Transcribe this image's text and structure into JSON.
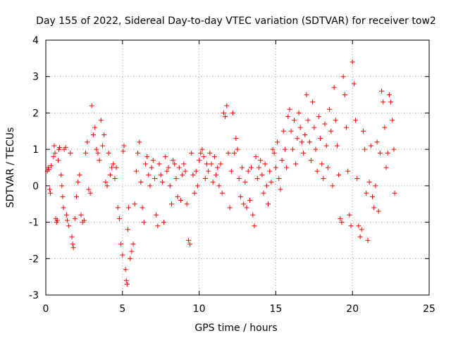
{
  "chart_data": {
    "type": "scatter",
    "title": "Day 155 of 2022, Sidereal Day-to-day VTEC variation (SDTVAR) for receiver tow2",
    "xlabel": "GPS time / hours",
    "ylabel": "SDTVAR / TECUs",
    "xlim": [
      0,
      25
    ],
    "ylim": [
      -3,
      4
    ],
    "xticks": [
      0,
      5,
      10,
      15,
      20,
      25
    ],
    "xtick_labels": [
      "0",
      "5",
      "10",
      "15",
      "20",
      "25"
    ],
    "yticks": [
      -3,
      -2,
      -1,
      0,
      1,
      2,
      3,
      4
    ],
    "ytick_labels": [
      "-3",
      "-2",
      "-1",
      "0",
      "1",
      "2",
      "3",
      "4"
    ],
    "grid": true,
    "marker": "plus",
    "color": "#ff0000",
    "series": [
      {
        "name": "SDTVAR",
        "points": [
          [
            0.1,
            0.4
          ],
          [
            0.15,
            0.5
          ],
          [
            0.2,
            0.45
          ],
          [
            0.25,
            -0.1
          ],
          [
            0.3,
            -0.2
          ],
          [
            0.35,
            0.55
          ],
          [
            0.5,
            0.8
          ],
          [
            0.55,
            1.1
          ],
          [
            0.6,
            0.9
          ],
          [
            0.65,
            -0.9
          ],
          [
            0.7,
            -1.0
          ],
          [
            0.75,
            -0.95
          ],
          [
            0.8,
            0.7
          ],
          [
            0.85,
            1.0
          ],
          [
            0.9,
            1.05
          ],
          [
            1.0,
            0.3
          ],
          [
            1.05,
            0.0
          ],
          [
            1.1,
            -0.3
          ],
          [
            1.15,
            -0.6
          ],
          [
            1.2,
            1.0
          ],
          [
            1.3,
            1.05
          ],
          [
            1.35,
            -0.8
          ],
          [
            1.4,
            -0.95
          ],
          [
            1.5,
            -1.1
          ],
          [
            1.6,
            0.9
          ],
          [
            1.7,
            -1.4
          ],
          [
            1.75,
            -1.6
          ],
          [
            1.8,
            -1.7
          ],
          [
            1.9,
            -0.9
          ],
          [
            2.0,
            -0.3
          ],
          [
            2.1,
            0.1
          ],
          [
            2.2,
            0.3
          ],
          [
            2.3,
            -0.8
          ],
          [
            2.4,
            -1.0
          ],
          [
            2.5,
            -0.95
          ],
          [
            2.6,
            0.9
          ],
          [
            2.7,
            1.2
          ],
          [
            2.8,
            -0.1
          ],
          [
            2.9,
            -0.2
          ],
          [
            3.0,
            2.2
          ],
          [
            3.1,
            1.4
          ],
          [
            3.2,
            1.6
          ],
          [
            3.3,
            1.0
          ],
          [
            3.4,
            0.9
          ],
          [
            3.5,
            0.7
          ],
          [
            3.6,
            1.8
          ],
          [
            3.7,
            1.1
          ],
          [
            3.8,
            1.4
          ],
          [
            3.9,
            0.1
          ],
          [
            4.0,
            0.0
          ],
          [
            4.1,
            0.9
          ],
          [
            4.2,
            0.3
          ],
          [
            4.3,
            0.5
          ],
          [
            4.4,
            0.6
          ],
          [
            4.5,
            0.2
          ],
          [
            4.6,
            0.5
          ],
          [
            4.7,
            -0.6
          ],
          [
            4.8,
            -0.9
          ],
          [
            4.9,
            -1.6
          ],
          [
            5.0,
            -1.9
          ],
          [
            5.05,
            0.95
          ],
          [
            5.1,
            1.1
          ],
          [
            5.2,
            -2.3
          ],
          [
            5.25,
            -2.6
          ],
          [
            5.3,
            -2.7
          ],
          [
            5.35,
            -1.2
          ],
          [
            5.4,
            -0.6
          ],
          [
            5.5,
            -2.0
          ],
          [
            5.6,
            -1.8
          ],
          [
            5.7,
            -1.6
          ],
          [
            5.8,
            -0.5
          ],
          [
            5.9,
            0.4
          ],
          [
            6.0,
            0.9
          ],
          [
            6.1,
            1.2
          ],
          [
            6.2,
            0.1
          ],
          [
            6.3,
            -0.6
          ],
          [
            6.4,
            -1.0
          ],
          [
            6.5,
            0.6
          ],
          [
            6.6,
            0.8
          ],
          [
            6.7,
            0.3
          ],
          [
            6.8,
            0.0
          ],
          [
            6.9,
            0.5
          ],
          [
            7.0,
            0.7
          ],
          [
            7.1,
            0.2
          ],
          [
            7.2,
            -0.8
          ],
          [
            7.3,
            -1.1
          ],
          [
            7.4,
            0.6
          ],
          [
            7.5,
            0.3
          ],
          [
            7.6,
            0.1
          ],
          [
            7.7,
            -1.0
          ],
          [
            7.8,
            0.8
          ],
          [
            7.9,
            0.4
          ],
          [
            8.0,
            0.5
          ],
          [
            8.1,
            0.0
          ],
          [
            8.2,
            -0.5
          ],
          [
            8.3,
            0.7
          ],
          [
            8.4,
            0.6
          ],
          [
            8.5,
            0.2
          ],
          [
            8.6,
            -0.3
          ],
          [
            8.7,
            0.5
          ],
          [
            8.8,
            -0.4
          ],
          [
            8.9,
            0.3
          ],
          [
            9.0,
            0.6
          ],
          [
            9.1,
            0.4
          ],
          [
            9.2,
            -0.5
          ],
          [
            9.3,
            -1.5
          ],
          [
            9.4,
            -1.6
          ],
          [
            9.5,
            0.9
          ],
          [
            9.6,
            0.3
          ],
          [
            9.7,
            -0.2
          ],
          [
            9.8,
            0.4
          ],
          [
            9.9,
            0.0
          ],
          [
            10.0,
            0.7
          ],
          [
            10.1,
            0.9
          ],
          [
            10.2,
            1.0
          ],
          [
            10.3,
            0.8
          ],
          [
            10.4,
            0.2
          ],
          [
            10.5,
            0.6
          ],
          [
            10.6,
            0.4
          ],
          [
            10.7,
            0.9
          ],
          [
            10.8,
            0.6
          ],
          [
            10.9,
            0.1
          ],
          [
            11.0,
            0.8
          ],
          [
            11.1,
            0.3
          ],
          [
            11.2,
            0.5
          ],
          [
            11.3,
            0.0
          ],
          [
            11.4,
            0.6
          ],
          [
            11.5,
            -0.2
          ],
          [
            11.6,
            2.0
          ],
          [
            11.7,
            1.9
          ],
          [
            11.8,
            2.2
          ],
          [
            11.9,
            0.9
          ],
          [
            12.0,
            -0.6
          ],
          [
            12.1,
            0.4
          ],
          [
            12.2,
            2.0
          ],
          [
            12.3,
            0.9
          ],
          [
            12.4,
            1.3
          ],
          [
            12.5,
            1.0
          ],
          [
            12.6,
            0.2
          ],
          [
            12.7,
            -0.3
          ],
          [
            12.8,
            0.5
          ],
          [
            12.9,
            -0.5
          ],
          [
            13.0,
            0.1
          ],
          [
            13.1,
            -0.6
          ],
          [
            13.2,
            0.4
          ],
          [
            13.3,
            -0.4
          ],
          [
            13.4,
            0.5
          ],
          [
            13.5,
            -0.8
          ],
          [
            13.6,
            -1.1
          ],
          [
            13.7,
            0.8
          ],
          [
            13.8,
            0.2
          ],
          [
            13.9,
            0.5
          ],
          [
            14.0,
            0.7
          ],
          [
            14.1,
            0.3
          ],
          [
            14.2,
            -0.2
          ],
          [
            14.3,
            0.6
          ],
          [
            14.4,
            0.0
          ],
          [
            14.5,
            -0.5
          ],
          [
            14.6,
            0.4
          ],
          [
            14.7,
            0.1
          ],
          [
            14.8,
            1.0
          ],
          [
            14.9,
            0.9
          ],
          [
            15.0,
            0.5
          ],
          [
            15.1,
            1.2
          ],
          [
            15.2,
            0.2
          ],
          [
            15.3,
            -0.1
          ],
          [
            15.4,
            0.7
          ],
          [
            15.5,
            1.5
          ],
          [
            15.6,
            1.0
          ],
          [
            15.7,
            0.5
          ],
          [
            15.8,
            1.9
          ],
          [
            15.9,
            2.1
          ],
          [
            16.0,
            1.5
          ],
          [
            16.1,
            1.0
          ],
          [
            16.2,
            1.8
          ],
          [
            16.3,
            0.6
          ],
          [
            16.4,
            1.3
          ],
          [
            16.5,
            2.0
          ],
          [
            16.6,
            1.6
          ],
          [
            16.7,
            1.2
          ],
          [
            16.8,
            0.9
          ],
          [
            16.9,
            1.4
          ],
          [
            17.0,
            2.5
          ],
          [
            17.1,
            1.8
          ],
          [
            17.2,
            1.2
          ],
          [
            17.3,
            0.7
          ],
          [
            17.4,
            2.3
          ],
          [
            17.5,
            1.6
          ],
          [
            17.6,
            1.0
          ],
          [
            17.7,
            0.4
          ],
          [
            17.8,
            1.9
          ],
          [
            17.9,
            1.3
          ],
          [
            18.0,
            0.6
          ],
          [
            18.1,
            0.2
          ],
          [
            18.2,
            1.7
          ],
          [
            18.3,
            1.1
          ],
          [
            18.4,
            0.5
          ],
          [
            18.5,
            2.1
          ],
          [
            18.6,
            1.5
          ],
          [
            18.7,
            0.0
          ],
          [
            18.8,
            2.7
          ],
          [
            18.9,
            1.8
          ],
          [
            19.0,
            1.1
          ],
          [
            19.1,
            0.3
          ],
          [
            19.2,
            -0.9
          ],
          [
            19.3,
            -1.0
          ],
          [
            19.4,
            3.0
          ],
          [
            19.5,
            2.5
          ],
          [
            19.6,
            1.6
          ],
          [
            19.7,
            0.4
          ],
          [
            19.8,
            -0.8
          ],
          [
            19.9,
            -1.1
          ],
          [
            20.0,
            3.4
          ],
          [
            20.1,
            2.8
          ],
          [
            20.2,
            1.8
          ],
          [
            20.3,
            0.2
          ],
          [
            20.4,
            -1.1
          ],
          [
            20.5,
            -1.4
          ],
          [
            20.6,
            -1.2
          ],
          [
            20.7,
            1.5
          ],
          [
            20.8,
            1.0
          ],
          [
            20.9,
            -0.2
          ],
          [
            21.0,
            -1.5
          ],
          [
            21.1,
            0.1
          ],
          [
            21.2,
            1.1
          ],
          [
            21.3,
            -0.3
          ],
          [
            21.4,
            -0.6
          ],
          [
            21.5,
            0.0
          ],
          [
            21.6,
            1.2
          ],
          [
            21.7,
            -0.7
          ],
          [
            21.8,
            0.9
          ],
          [
            21.9,
            2.6
          ],
          [
            22.0,
            2.3
          ],
          [
            22.1,
            1.6
          ],
          [
            22.2,
            0.5
          ],
          [
            22.3,
            0.9
          ],
          [
            22.4,
            2.5
          ],
          [
            22.5,
            2.3
          ],
          [
            22.6,
            1.8
          ],
          [
            22.7,
            1.0
          ],
          [
            22.75,
            -0.2
          ]
        ]
      }
    ]
  }
}
